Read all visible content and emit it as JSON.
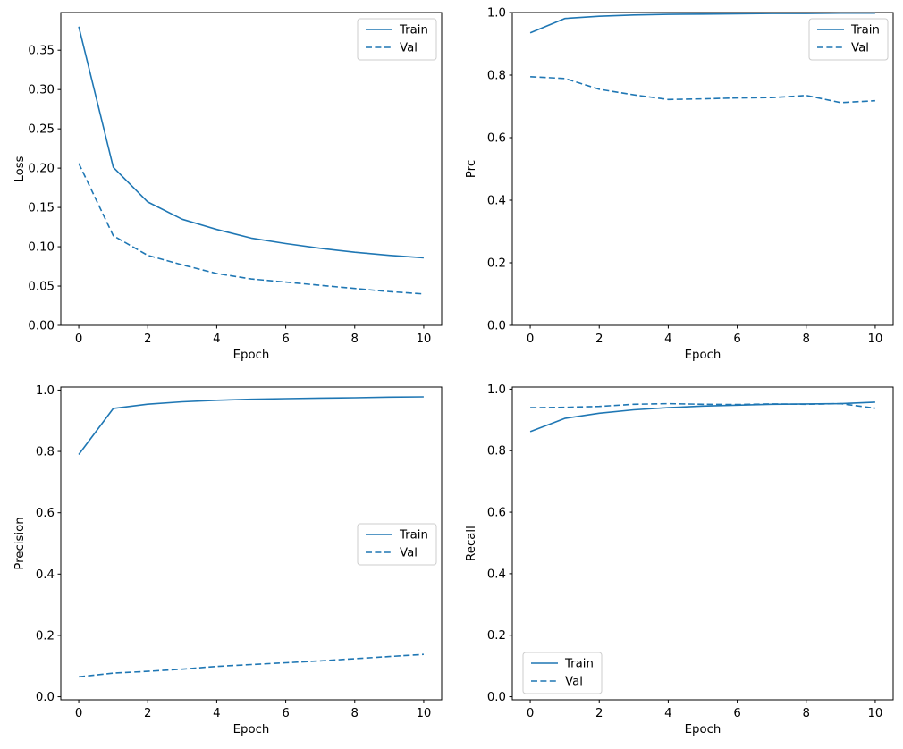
{
  "colors": {
    "line": "#1f77b4",
    "spine": "#000000",
    "text": "#000000",
    "legend_border": "#cccccc",
    "background": "#ffffff"
  },
  "chart_data": [
    {
      "type": "line",
      "title": "",
      "xlabel": "Epoch",
      "ylabel": "Loss",
      "x": [
        0,
        1,
        2,
        3,
        4,
        5,
        6,
        7,
        8,
        9,
        10
      ],
      "series": [
        {
          "name": "Train",
          "line_style": "solid",
          "values": [
            0.38,
            0.201,
            0.157,
            0.135,
            0.122,
            0.111,
            0.104,
            0.098,
            0.093,
            0.089,
            0.086
          ]
        },
        {
          "name": "Val",
          "line_style": "dashed",
          "values": [
            0.206,
            0.114,
            0.089,
            0.077,
            0.066,
            0.059,
            0.055,
            0.051,
            0.047,
            0.043,
            0.04
          ]
        }
      ],
      "xlim": [
        -0.52,
        10.52
      ],
      "ylim": [
        0,
        0.398
      ],
      "xticks": {
        "values": [
          0,
          2,
          4,
          6,
          8,
          10
        ],
        "labels": [
          "0",
          "2",
          "4",
          "6",
          "8",
          "10"
        ]
      },
      "yticks": {
        "values": [
          0.0,
          0.05,
          0.1,
          0.15,
          0.2,
          0.25,
          0.3,
          0.35
        ],
        "labels": [
          "0.00",
          "0.05",
          "0.10",
          "0.15",
          "0.20",
          "0.25",
          "0.30",
          "0.35"
        ]
      },
      "legend_position": "top-right",
      "grid": false,
      "line_color": "#1f77b4"
    },
    {
      "type": "line",
      "title": "",
      "xlabel": "Epoch",
      "ylabel": "Prc",
      "x": [
        0,
        1,
        2,
        3,
        4,
        5,
        6,
        7,
        8,
        9,
        10
      ],
      "series": [
        {
          "name": "Train",
          "line_style": "solid",
          "values": [
            0.935,
            0.981,
            0.988,
            0.992,
            0.994,
            0.995,
            0.996,
            0.997,
            0.997,
            0.998,
            0.998
          ]
        },
        {
          "name": "Val",
          "line_style": "dashed",
          "values": [
            0.795,
            0.789,
            0.755,
            0.737,
            0.722,
            0.724,
            0.727,
            0.728,
            0.735,
            0.712,
            0.718
          ]
        }
      ],
      "xlim": [
        -0.52,
        10.52
      ],
      "ylim": [
        0,
        1.0
      ],
      "xticks": {
        "values": [
          0,
          2,
          4,
          6,
          8,
          10
        ],
        "labels": [
          "0",
          "2",
          "4",
          "6",
          "8",
          "10"
        ]
      },
      "yticks": {
        "values": [
          0.0,
          0.2,
          0.4,
          0.6,
          0.8,
          1.0
        ],
        "labels": [
          "0.0",
          "0.2",
          "0.4",
          "0.6",
          "0.8",
          "1.0"
        ]
      },
      "legend_position": "top-right",
      "grid": false,
      "line_color": "#1f77b4"
    },
    {
      "type": "line",
      "title": "",
      "xlabel": "Epoch",
      "ylabel": "Precision",
      "x": [
        0,
        1,
        2,
        3,
        4,
        5,
        6,
        7,
        8,
        9,
        10
      ],
      "series": [
        {
          "name": "Train",
          "line_style": "solid",
          "values": [
            0.79,
            0.94,
            0.954,
            0.962,
            0.967,
            0.97,
            0.972,
            0.974,
            0.975,
            0.977,
            0.978
          ]
        },
        {
          "name": "Val",
          "line_style": "dashed",
          "values": [
            0.065,
            0.077,
            0.083,
            0.09,
            0.099,
            0.105,
            0.111,
            0.117,
            0.124,
            0.131,
            0.138
          ]
        }
      ],
      "xlim": [
        -0.52,
        10.52
      ],
      "ylim": [
        -0.01,
        1.01
      ],
      "xticks": {
        "values": [
          0,
          2,
          4,
          6,
          8,
          10
        ],
        "labels": [
          "0",
          "2",
          "4",
          "6",
          "8",
          "10"
        ]
      },
      "yticks": {
        "values": [
          0.0,
          0.2,
          0.4,
          0.6,
          0.8,
          1.0
        ],
        "labels": [
          "0.0",
          "0.2",
          "0.4",
          "0.6",
          "0.8",
          "1.0"
        ]
      },
      "legend_position": "middle-right",
      "grid": false,
      "line_color": "#1f77b4"
    },
    {
      "type": "line",
      "title": "",
      "xlabel": "Epoch",
      "ylabel": "Recall",
      "x": [
        0,
        1,
        2,
        3,
        4,
        5,
        6,
        7,
        8,
        9,
        10
      ],
      "series": [
        {
          "name": "Train",
          "line_style": "solid",
          "values": [
            0.862,
            0.905,
            0.922,
            0.933,
            0.94,
            0.945,
            0.948,
            0.951,
            0.952,
            0.953,
            0.958
          ]
        },
        {
          "name": "Val",
          "line_style": "dashed",
          "values": [
            0.94,
            0.941,
            0.944,
            0.951,
            0.953,
            0.951,
            0.95,
            0.952,
            0.951,
            0.953,
            0.938
          ]
        }
      ],
      "xlim": [
        -0.52,
        10.52
      ],
      "ylim": [
        -0.01,
        1.007
      ],
      "xticks": {
        "values": [
          0,
          2,
          4,
          6,
          8,
          10
        ],
        "labels": [
          "0",
          "2",
          "4",
          "6",
          "8",
          "10"
        ]
      },
      "yticks": {
        "values": [
          0.0,
          0.2,
          0.4,
          0.6,
          0.8,
          1.0
        ],
        "labels": [
          "0.0",
          "0.2",
          "0.4",
          "0.6",
          "0.8",
          "1.0"
        ]
      },
      "legend_position": "bottom-left",
      "grid": false,
      "line_color": "#1f77b4"
    }
  ]
}
